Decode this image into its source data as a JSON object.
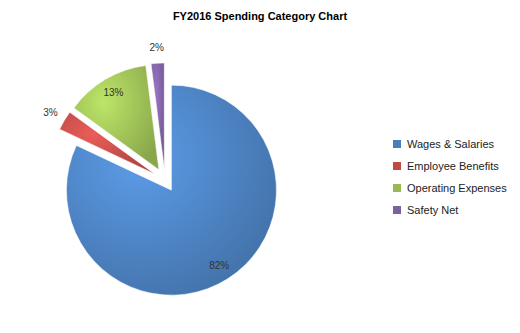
{
  "chart_data": {
    "type": "pie",
    "title": "FY2016 Spending Category Chart",
    "categories": [
      "Wages & Salaries",
      "Employee Benefits",
      "Operating Expenses",
      "Safety Net"
    ],
    "values": [
      82,
      3,
      13,
      2
    ],
    "value_labels": [
      "82%",
      "3%",
      "13%",
      "2%"
    ],
    "colors": [
      "#4a7ebb",
      "#be4b48",
      "#98b954",
      "#7d60a0"
    ],
    "data_labels": true,
    "legend": "right"
  }
}
